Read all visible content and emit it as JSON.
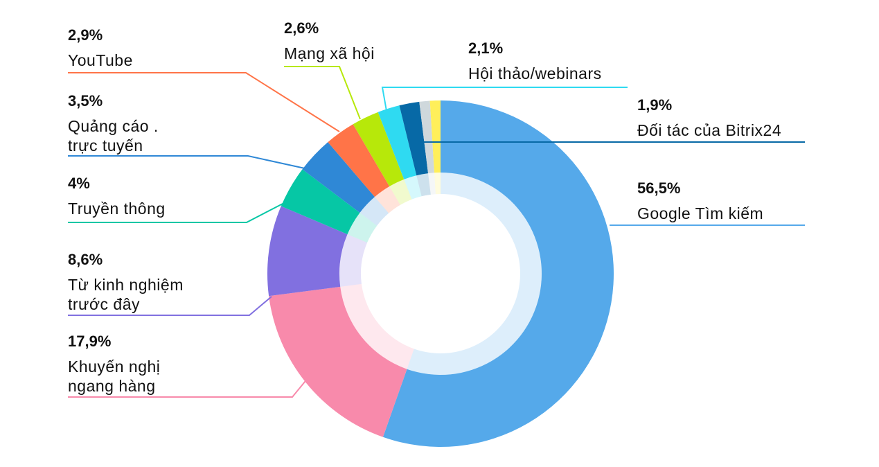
{
  "chart_data": {
    "type": "pie",
    "variant": "donut",
    "title": "",
    "slices": [
      {
        "label": "Google Tìm kiếm",
        "value": 56.5,
        "value_label": "56,5%",
        "color": "#55a9ea"
      },
      {
        "label": "Khuyến nghị ngang hàng",
        "value": 17.9,
        "value_label": "17,9%",
        "color": "#f88aab"
      },
      {
        "label": "Từ kinh nghiệm trước đây",
        "value": 8.6,
        "value_label": "8,6%",
        "color": "#8170e0"
      },
      {
        "label": "Truyền thông",
        "value": 4,
        "value_label": "4%",
        "color": "#06c7a5"
      },
      {
        "label": "Quảng cáo . trực tuyến",
        "value": 3.5,
        "value_label": "3,5%",
        "color": "#2f88d6"
      },
      {
        "label": "YouTube",
        "value": 2.9,
        "value_label": "2,9%",
        "color": "#ff7448"
      },
      {
        "label": "Mạng xã hội",
        "value": 2.6,
        "value_label": "2,6%",
        "color": "#b7e80a"
      },
      {
        "label": "Hội thảo/webinars",
        "value": 2.1,
        "value_label": "2,1%",
        "color": "#2fdaf1"
      },
      {
        "label": "Đối tác của Bitrix24",
        "value": 1.9,
        "value_label": "1,9%",
        "color": "#0769a6"
      },
      {
        "label": "",
        "value": 1.0,
        "value_label": "",
        "color": "#cfd8dc"
      },
      {
        "label": "",
        "value": 1.0,
        "value_label": "",
        "color": "#ffef5a"
      }
    ]
  },
  "labels": [
    {
      "pct": "56,5%",
      "lines": [
        "Google Tìm kiếm"
      ]
    },
    {
      "pct": "17,9%",
      "lines": [
        "Khuyến nghị",
        "ngang hàng"
      ]
    },
    {
      "pct": "8,6%",
      "lines": [
        "Từ kinh nghiệm",
        "trước đây"
      ]
    },
    {
      "pct": "4%",
      "lines": [
        "Truyền thông"
      ]
    },
    {
      "pct": "3,5%",
      "lines": [
        "Quảng cáo  .",
        "trực tuyến"
      ]
    },
    {
      "pct": "2,9%",
      "lines": [
        "YouTube"
      ]
    },
    {
      "pct": "2,6%",
      "lines": [
        "Mạng xã hội"
      ]
    },
    {
      "pct": "2,1%",
      "lines": [
        "Hội thảo/webinars"
      ]
    },
    {
      "pct": "1,9%",
      "lines": [
        "Đối tác của Bitrix24"
      ]
    }
  ]
}
